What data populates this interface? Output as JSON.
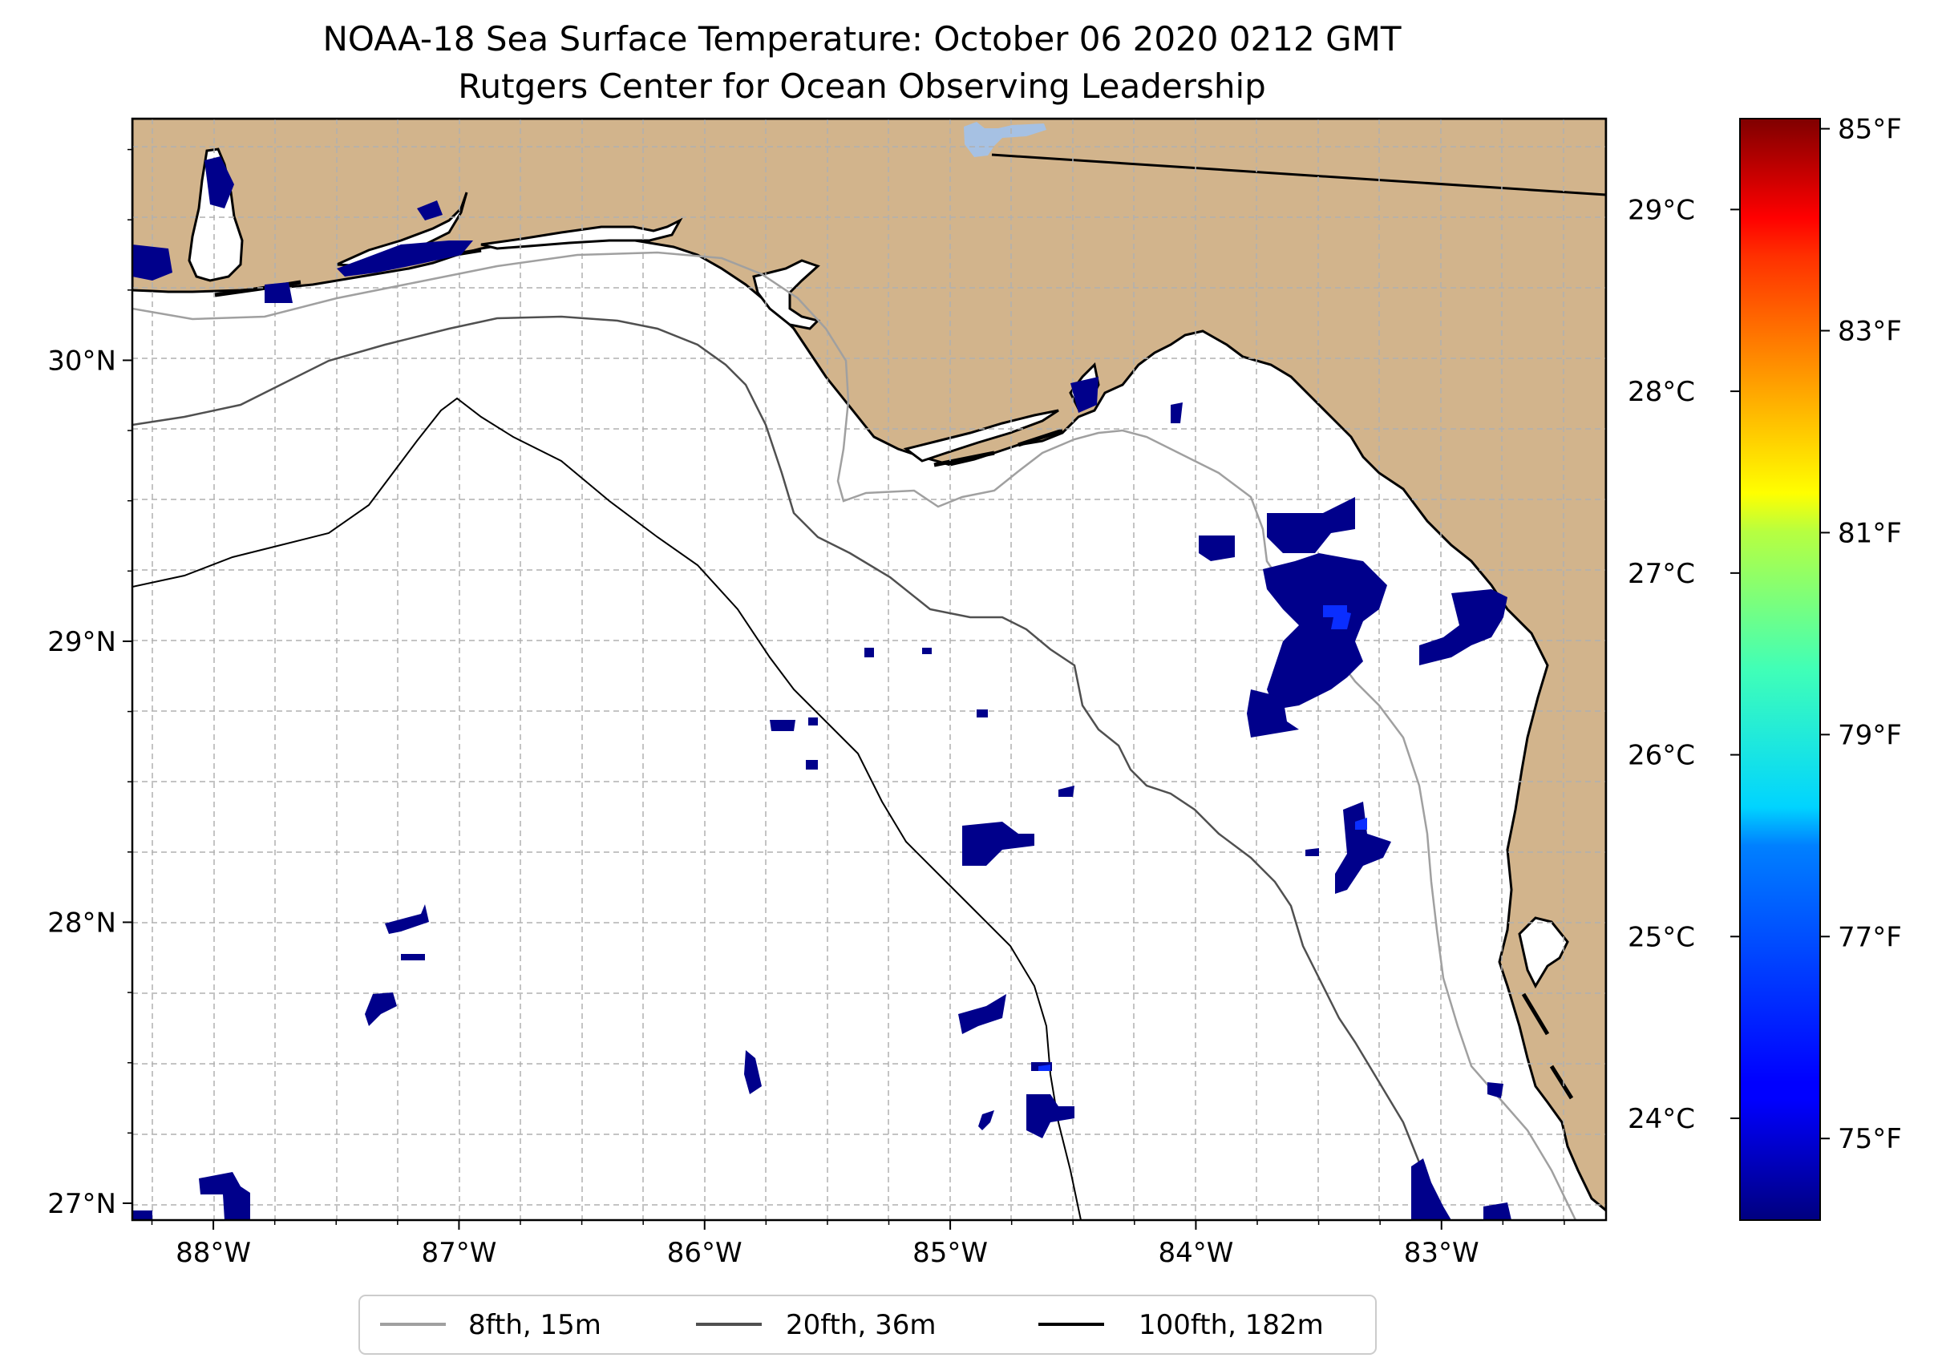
{
  "title": "NOAA-18 Sea Surface Temperature: October 06 2020 0212 GMT",
  "subtitle": "Rutgers Center for Ocean Observing Leadership",
  "colors": {
    "land": "#d2b48c",
    "ocean": "#ffffff",
    "sst_patch": "#00008b",
    "lake": "#a6c1e3",
    "gridline": "#b0b0b0",
    "contour_8fth": "#a0a0a0",
    "contour_20fth": "#505050",
    "contour_100fth": "#000000"
  },
  "map": {
    "lon_range": [
      -88.33,
      -82.33
    ],
    "lat_range": [
      26.94,
      30.86
    ],
    "gridlines": true,
    "lon_ticks": [
      {
        "value": -88,
        "label": "88°W"
      },
      {
        "value": -87,
        "label": "87°W"
      },
      {
        "value": -86,
        "label": "86°W"
      },
      {
        "value": -85,
        "label": "85°W"
      },
      {
        "value": -84,
        "label": "84°W"
      },
      {
        "value": -83,
        "label": "83°W"
      }
    ],
    "lat_ticks": [
      {
        "value": 30,
        "label": "30°N"
      },
      {
        "value": 29,
        "label": "29°N"
      },
      {
        "value": 28,
        "label": "28°N"
      },
      {
        "value": 27,
        "label": "27°N"
      }
    ]
  },
  "colorbar": {
    "colormap": "jet",
    "celsius_ticks": [
      {
        "value": 24,
        "label": "24°C"
      },
      {
        "value": 25,
        "label": "25°C"
      },
      {
        "value": 26,
        "label": "26°C"
      },
      {
        "value": 27,
        "label": "27°C"
      },
      {
        "value": 28,
        "label": "28°C"
      },
      {
        "value": 29,
        "label": "29°C"
      }
    ],
    "fahrenheit_ticks": [
      {
        "value": 75,
        "label": "75°F"
      },
      {
        "value": 77,
        "label": "77°F"
      },
      {
        "value": 79,
        "label": "79°F"
      },
      {
        "value": 81,
        "label": "81°F"
      },
      {
        "value": 83,
        "label": "83°F"
      },
      {
        "value": 85,
        "label": "85°F"
      }
    ]
  },
  "legend": {
    "placement": "bottom-center",
    "items": [
      {
        "label": "8fth, 15m",
        "color": "#a0a0a0"
      },
      {
        "label": "20fth, 36m",
        "color": "#505050"
      },
      {
        "label": "100fth, 182m",
        "color": "#000000"
      }
    ]
  }
}
